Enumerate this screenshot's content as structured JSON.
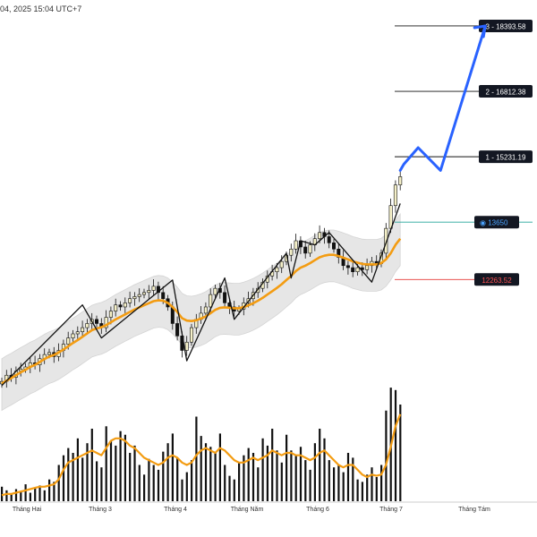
{
  "header": {
    "timestamp": "04, 2025 15:04 UTC+7"
  },
  "colors": {
    "up": "#f5f0c8",
    "down": "#111111",
    "ma": "#f39c12",
    "target_arrow": "#2962ff",
    "band": "#e6e6e6",
    "entry_line": "#26a69a",
    "stop_line": "#e53935",
    "volume_bar": "#111111"
  },
  "chart_data": {
    "type": "candlestick",
    "title": "",
    "xlabel": "",
    "ylabel": "",
    "months": [
      "Tháng Hai",
      "Tháng 3",
      "Tháng 4",
      "Tháng Năm",
      "Tháng 6",
      "Tháng 7",
      "Tháng Tám"
    ],
    "price_ylim": [
      8400,
      19400
    ],
    "levels": [
      {
        "name": "target-3",
        "label": "3 - 18393.58",
        "value": 18393.58
      },
      {
        "name": "target-2",
        "label": "2 - 16812.38",
        "value": 16812.38
      },
      {
        "name": "target-1",
        "label": "1 - 15231.19",
        "value": 15231.19
      }
    ],
    "entry": {
      "label": "13650",
      "value": 13650
    },
    "stop": {
      "label": "12263.52",
      "value": 12263.52
    },
    "closes": [
      9800,
      9950,
      9900,
      10050,
      10100,
      10150,
      10250,
      10200,
      10350,
      10450,
      10500,
      10400,
      10550,
      10700,
      10850,
      10950,
      11000,
      11100,
      11200,
      11300,
      11200,
      11100,
      11350,
      11500,
      11650,
      11600,
      11700,
      11800,
      11850,
      11900,
      11950,
      12000,
      12100,
      11950,
      11800,
      11600,
      11200,
      10900,
      10550,
      10750,
      11100,
      11300,
      11450,
      11600,
      11900,
      12050,
      11950,
      11700,
      11600,
      11500,
      11550,
      11700,
      11800,
      11950,
      12050,
      12200,
      12350,
      12450,
      12550,
      12700,
      12850,
      13000,
      13200,
      13050,
      12900,
      13100,
      13250,
      13400,
      13300,
      13150,
      13000,
      12800,
      12600,
      12550,
      12450,
      12550,
      12500,
      12600,
      12700,
      12650,
      12900,
      13500,
      14050,
      14550,
      14750
    ],
    "ma_values": [
      9750,
      9820,
      9880,
      9950,
      10020,
      10080,
      10150,
      10200,
      10270,
      10340,
      10400,
      10440,
      10500,
      10570,
      10650,
      10730,
      10800,
      10880,
      10960,
      11040,
      11080,
      11110,
      11160,
      11230,
      11300,
      11360,
      11420,
      11480,
      11540,
      11590,
      11640,
      11690,
      11740,
      11760,
      11750,
      11700,
      11600,
      11480,
      11330,
      11270,
      11260,
      11280,
      11320,
      11370,
      11450,
      11530,
      11580,
      11590,
      11580,
      11570,
      11570,
      11600,
      11640,
      11690,
      11750,
      11820,
      11900,
      11980,
      12060,
      12150,
      12250,
      12350,
      12470,
      12550,
      12600,
      12660,
      12730,
      12800,
      12840,
      12860,
      12860,
      12830,
      12790,
      12750,
      12700,
      12670,
      12640,
      12630,
      12630,
      12630,
      12660,
      12750,
      12900,
      13100,
      13250
    ],
    "zigzag": [
      [
        0,
        9700
      ],
      [
        17,
        11650
      ],
      [
        21,
        10850
      ],
      [
        36,
        12250
      ],
      [
        39,
        10300
      ],
      [
        47,
        12300
      ],
      [
        49,
        11300
      ],
      [
        60,
        12900
      ],
      [
        61,
        12300
      ],
      [
        63,
        13200
      ],
      [
        66,
        13100
      ],
      [
        69,
        13400
      ],
      [
        78,
        12200
      ],
      [
        84,
        14100
      ]
    ],
    "projection": [
      15050,
      15450,
      14900,
      18393.58
    ],
    "volume_ylim": [
      0,
      100
    ],
    "volume": [
      12,
      9,
      6,
      10,
      8,
      14,
      7,
      11,
      13,
      9,
      18,
      16,
      30,
      38,
      44,
      40,
      52,
      36,
      48,
      60,
      33,
      28,
      62,
      50,
      46,
      58,
      55,
      40,
      46,
      30,
      22,
      35,
      30,
      26,
      41,
      48,
      56,
      36,
      18,
      24,
      34,
      70,
      54,
      48,
      45,
      40,
      56,
      30,
      21,
      18,
      32,
      38,
      44,
      40,
      28,
      52,
      46,
      60,
      42,
      32,
      55,
      42,
      38,
      45,
      34,
      26,
      48,
      60,
      52,
      34,
      28,
      30,
      24,
      40,
      36,
      18,
      16,
      22,
      28,
      20,
      30,
      75,
      94,
      92,
      80
    ],
    "volume_ma": [
      5,
      6,
      6,
      7,
      8,
      9,
      10,
      11,
      12,
      12,
      13,
      14,
      18,
      26,
      32,
      34,
      36,
      38,
      40,
      42,
      40,
      38,
      44,
      50,
      52,
      52,
      50,
      46,
      44,
      40,
      36,
      34,
      32,
      30,
      32,
      36,
      38,
      36,
      32,
      30,
      32,
      38,
      42,
      44,
      42,
      40,
      44,
      42,
      38,
      34,
      32,
      32,
      34,
      36,
      34,
      36,
      38,
      42,
      40,
      38,
      40,
      40,
      38,
      38,
      36,
      34,
      36,
      40,
      42,
      38,
      34,
      30,
      28,
      30,
      30,
      26,
      22,
      20,
      22,
      21,
      22,
      30,
      45,
      62,
      72
    ]
  }
}
